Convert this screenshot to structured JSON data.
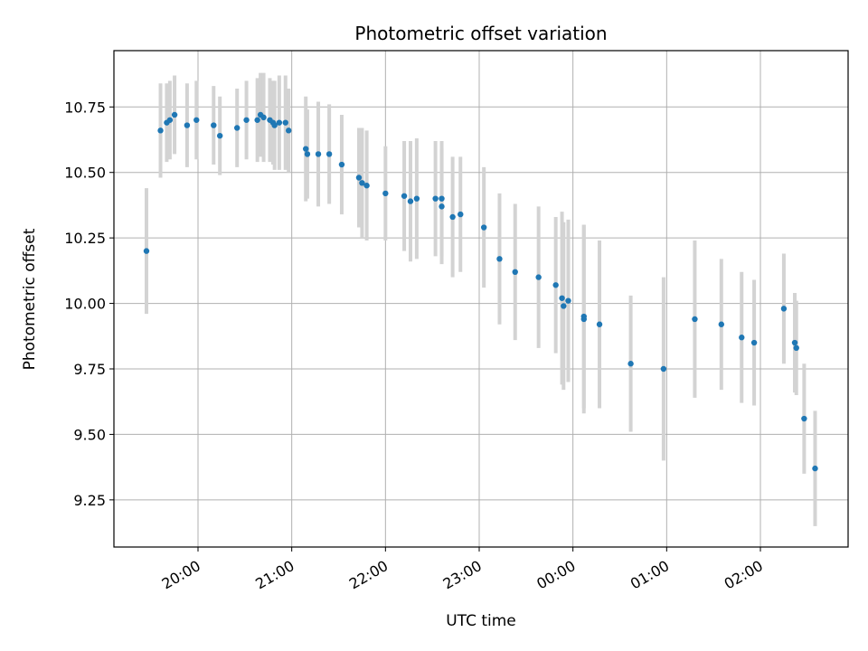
{
  "chart_data": {
    "type": "scatter",
    "title": "Photometric offset variation",
    "xlabel": "UTC time",
    "ylabel": "Photometric offset",
    "grid": true,
    "x_tick_labels": [
      "20:00",
      "21:00",
      "22:00",
      "23:00",
      "00:00",
      "01:00",
      "02:00"
    ],
    "y_tick_labels": [
      "9.25",
      "9.50",
      "9.75",
      "10.00",
      "10.25",
      "10.50",
      "10.75"
    ],
    "colors": {
      "point": "#1f77b4",
      "errorbar": "#d3d3d3",
      "grid": "#b0b0b0"
    },
    "series": [
      {
        "x": [
          "19:27",
          "19:36",
          "19:40",
          "19:42",
          "19:45",
          "19:53",
          "19:59",
          "20:10",
          "20:14",
          "20:25",
          "20:31",
          "20:38",
          "20:40",
          "20:42",
          "20:46",
          "20:48",
          "20:49",
          "20:52",
          "20:56",
          "20:58",
          "21:09",
          "21:10",
          "21:17",
          "21:24",
          "21:32",
          "21:43",
          "21:45",
          "21:48",
          "22:00",
          "22:12",
          "22:16",
          "22:20",
          "22:32",
          "22:36",
          "22:36",
          "22:43",
          "22:48",
          "23:03",
          "23:13",
          "23:23",
          "23:38",
          "23:49",
          "23:53",
          "23:54",
          "23:57",
          "00:07",
          "00:07",
          "00:17",
          "00:37",
          "00:58",
          "01:18",
          "01:35",
          "01:48",
          "01:56",
          "02:15",
          "02:22",
          "02:23",
          "02:28",
          "02:35"
        ],
        "y": [
          10.2,
          10.66,
          10.69,
          10.7,
          10.72,
          10.68,
          10.7,
          10.68,
          10.64,
          10.67,
          10.7,
          10.7,
          10.72,
          10.71,
          10.7,
          10.69,
          10.68,
          10.69,
          10.69,
          10.66,
          10.59,
          10.57,
          10.57,
          10.57,
          10.53,
          10.48,
          10.46,
          10.45,
          10.42,
          10.41,
          10.39,
          10.4,
          10.4,
          10.4,
          10.37,
          10.33,
          10.34,
          10.29,
          10.17,
          10.12,
          10.1,
          10.07,
          10.02,
          9.99,
          10.01,
          9.95,
          9.94,
          9.92,
          9.77,
          9.75,
          9.94,
          9.92,
          9.87,
          9.85,
          9.98,
          9.85,
          9.83,
          9.56,
          9.37
        ],
        "yerr": [
          0.24,
          0.18,
          0.15,
          0.15,
          0.15,
          0.16,
          0.15,
          0.15,
          0.15,
          0.15,
          0.15,
          0.16,
          0.16,
          0.17,
          0.16,
          0.16,
          0.17,
          0.18,
          0.18,
          0.16,
          0.2,
          0.17,
          0.2,
          0.19,
          0.19,
          0.19,
          0.21,
          0.21,
          0.18,
          0.21,
          0.23,
          0.23,
          0.22,
          0.22,
          0.22,
          0.23,
          0.22,
          0.23,
          0.25,
          0.26,
          0.27,
          0.26,
          0.33,
          0.32,
          0.31,
          0.35,
          0.36,
          0.32,
          0.26,
          0.35,
          0.3,
          0.25,
          0.25,
          0.24,
          0.21,
          0.19,
          0.18,
          0.21,
          0.22
        ]
      }
    ]
  }
}
